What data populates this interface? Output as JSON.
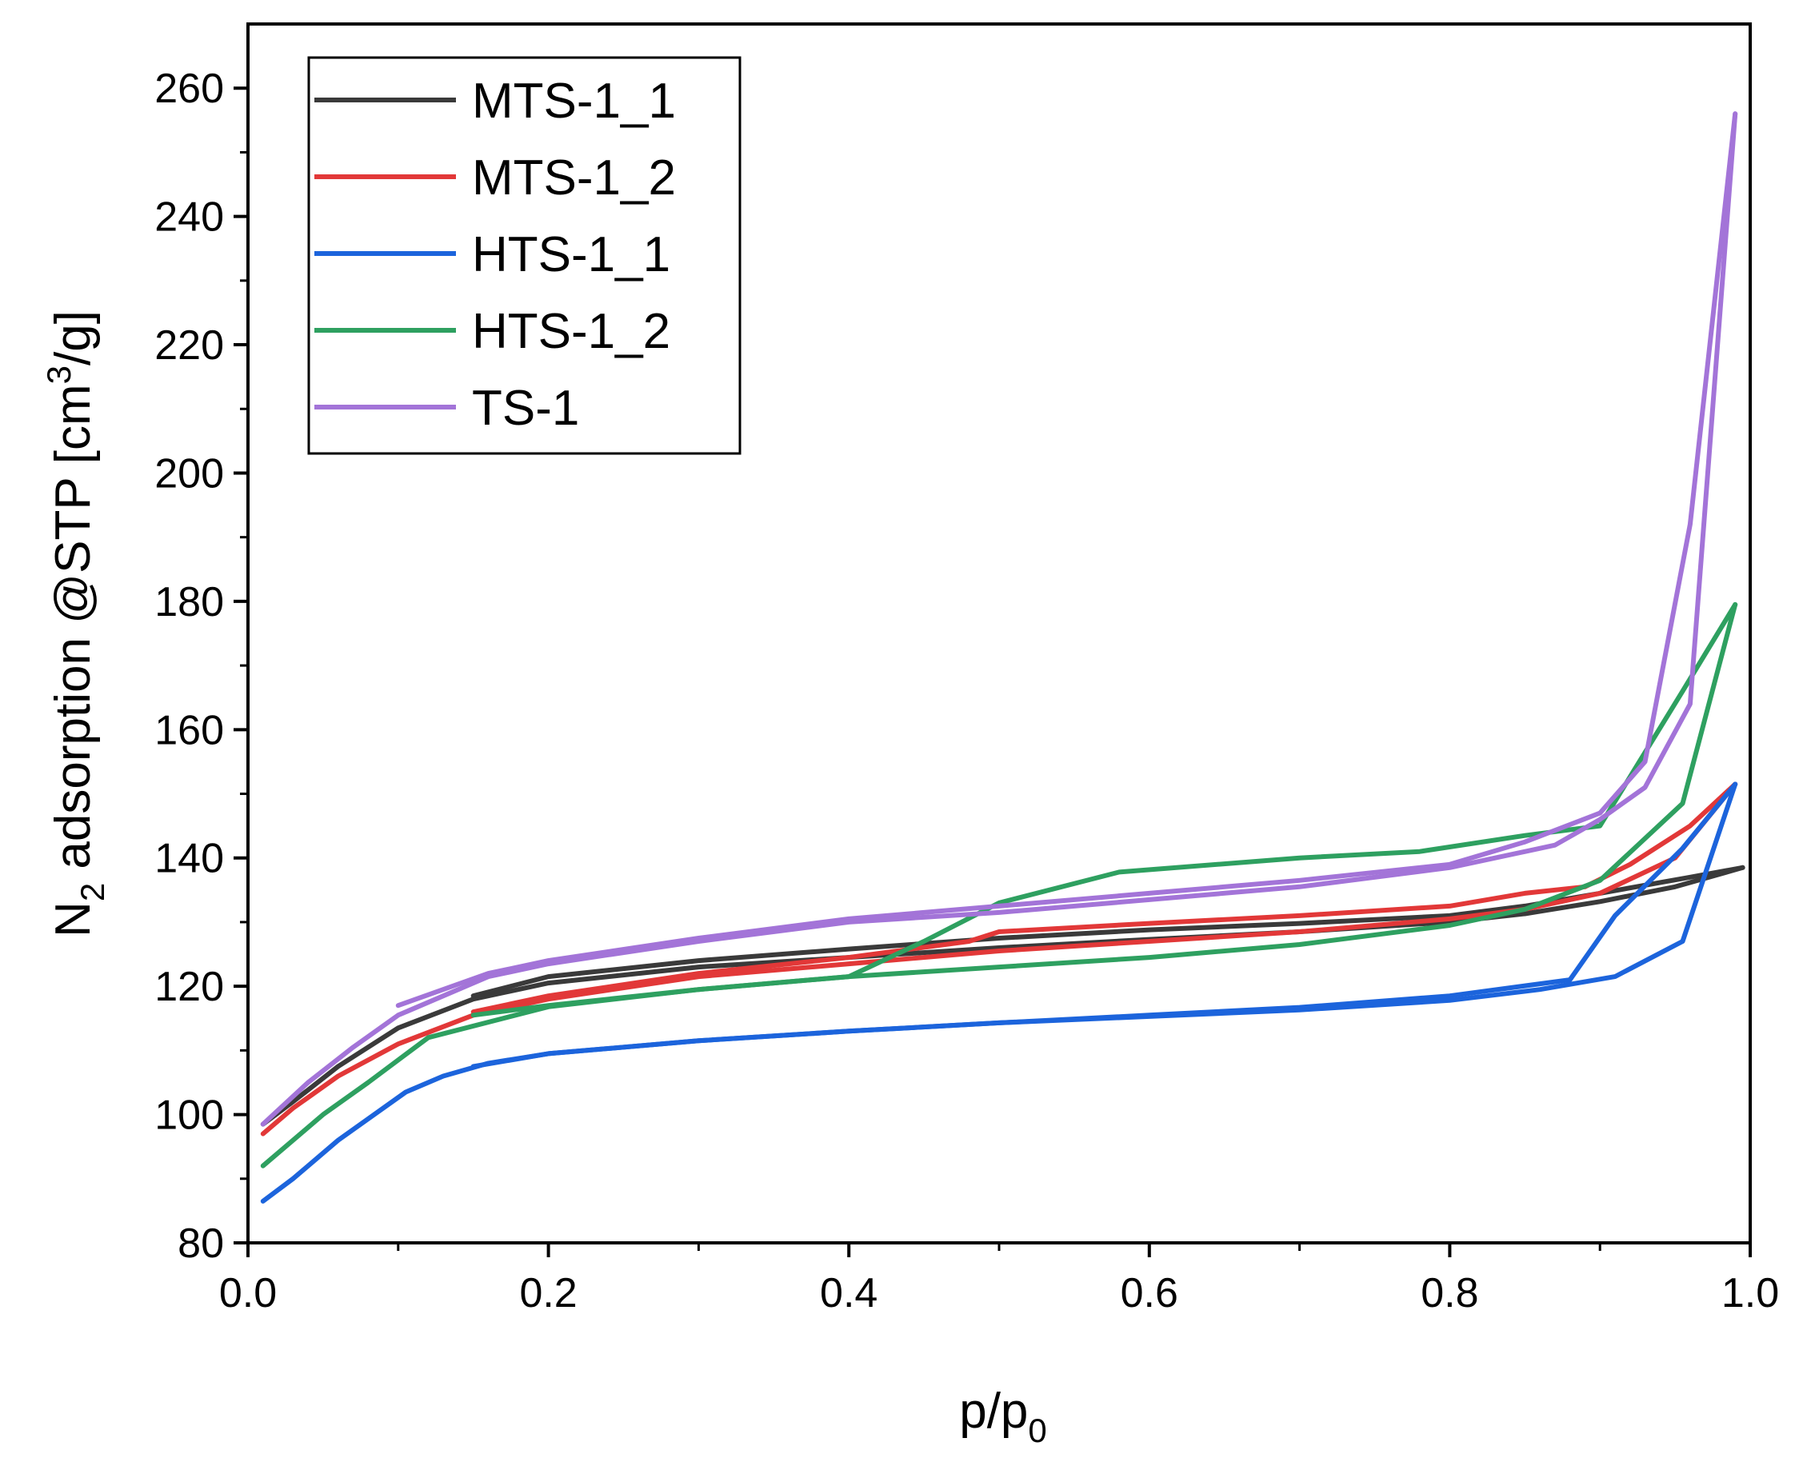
{
  "chart_data": {
    "type": "line",
    "title": "",
    "xlabel": {
      "base": "p/p",
      "sub": "0"
    },
    "ylabel": {
      "part1": "N",
      "sub": "2",
      "part2": " adsorption @STP [cm",
      "sup": "3",
      "part3": "/g]"
    },
    "xlim": [
      0.0,
      1.0
    ],
    "ylim": [
      80,
      270
    ],
    "xticks": [
      0.0,
      0.2,
      0.4,
      0.6,
      0.8,
      1.0
    ],
    "xtick_labels": [
      "0.0",
      "0.2",
      "0.4",
      "0.6",
      "0.8",
      "1.0"
    ],
    "yticks": [
      80,
      100,
      120,
      140,
      160,
      180,
      200,
      220,
      240,
      260
    ],
    "ytick_labels": [
      "80",
      "100",
      "120",
      "140",
      "160",
      "180",
      "200",
      "220",
      "240",
      "260"
    ],
    "legend_position": "top-left",
    "series": [
      {
        "name": "MTS-1_1",
        "color": "#3a3a3a",
        "adsorption": [
          [
            0.01,
            98.5
          ],
          [
            0.03,
            102
          ],
          [
            0.06,
            107.5
          ],
          [
            0.1,
            113.5
          ],
          [
            0.15,
            118
          ],
          [
            0.2,
            120.5
          ],
          [
            0.3,
            123
          ],
          [
            0.4,
            124.5
          ],
          [
            0.5,
            126
          ],
          [
            0.6,
            127.3
          ],
          [
            0.7,
            128.5
          ],
          [
            0.8,
            130
          ],
          [
            0.85,
            131.3
          ],
          [
            0.9,
            133.2
          ],
          [
            0.95,
            135.5
          ],
          [
            0.995,
            138.5
          ]
        ],
        "desorption": [
          [
            0.995,
            138.5
          ],
          [
            0.96,
            137
          ],
          [
            0.9,
            134.5
          ],
          [
            0.85,
            132.5
          ],
          [
            0.8,
            131
          ],
          [
            0.7,
            129.8
          ],
          [
            0.6,
            128.8
          ],
          [
            0.5,
            127.5
          ],
          [
            0.4,
            125.8
          ],
          [
            0.3,
            124
          ],
          [
            0.2,
            121.5
          ],
          [
            0.15,
            118.5
          ]
        ]
      },
      {
        "name": "MTS-1_2",
        "color": "#e23838",
        "adsorption": [
          [
            0.01,
            97
          ],
          [
            0.03,
            101
          ],
          [
            0.06,
            106
          ],
          [
            0.1,
            111
          ],
          [
            0.15,
            115.5
          ],
          [
            0.2,
            118
          ],
          [
            0.3,
            121.5
          ],
          [
            0.4,
            123.5
          ],
          [
            0.5,
            125.5
          ],
          [
            0.6,
            127
          ],
          [
            0.7,
            128.5
          ],
          [
            0.8,
            130.5
          ],
          [
            0.85,
            132
          ],
          [
            0.9,
            134.5
          ],
          [
            0.95,
            140
          ],
          [
            0.99,
            151.5
          ]
        ],
        "desorption": [
          [
            0.99,
            151.5
          ],
          [
            0.96,
            145
          ],
          [
            0.92,
            139
          ],
          [
            0.89,
            135.5
          ],
          [
            0.85,
            134.5
          ],
          [
            0.8,
            132.5
          ],
          [
            0.7,
            131
          ],
          [
            0.6,
            129.8
          ],
          [
            0.5,
            128.5
          ],
          [
            0.48,
            127
          ],
          [
            0.4,
            124.5
          ],
          [
            0.3,
            122
          ],
          [
            0.2,
            118.5
          ],
          [
            0.15,
            116
          ]
        ]
      },
      {
        "name": "HTS-1_1",
        "color": "#1c64dc",
        "adsorption": [
          [
            0.01,
            86.5
          ],
          [
            0.03,
            90
          ],
          [
            0.06,
            96
          ],
          [
            0.105,
            103.5
          ],
          [
            0.13,
            106
          ],
          [
            0.16,
            108
          ],
          [
            0.2,
            109.5
          ],
          [
            0.3,
            111.5
          ],
          [
            0.4,
            113
          ],
          [
            0.5,
            114.3
          ],
          [
            0.6,
            115.3
          ],
          [
            0.7,
            116.3
          ],
          [
            0.8,
            117.8
          ],
          [
            0.86,
            119.5
          ],
          [
            0.91,
            121.5
          ],
          [
            0.955,
            127
          ],
          [
            0.99,
            151.5
          ]
        ],
        "desorption": [
          [
            0.99,
            151.5
          ],
          [
            0.955,
            141.5
          ],
          [
            0.91,
            131
          ],
          [
            0.88,
            121
          ],
          [
            0.8,
            118.5
          ],
          [
            0.7,
            116.7
          ],
          [
            0.6,
            115.5
          ],
          [
            0.5,
            114.3
          ],
          [
            0.4,
            113
          ],
          [
            0.3,
            111.5
          ],
          [
            0.2,
            109.5
          ],
          [
            0.15,
            107.5
          ]
        ]
      },
      {
        "name": "HTS-1_2",
        "color": "#2ea060",
        "adsorption": [
          [
            0.01,
            92
          ],
          [
            0.05,
            100
          ],
          [
            0.08,
            105
          ],
          [
            0.12,
            112
          ],
          [
            0.2,
            116.8
          ],
          [
            0.3,
            119.5
          ],
          [
            0.4,
            121.5
          ],
          [
            0.5,
            123
          ],
          [
            0.6,
            124.5
          ],
          [
            0.7,
            126.5
          ],
          [
            0.8,
            129.5
          ],
          [
            0.85,
            132
          ],
          [
            0.9,
            136.5
          ],
          [
            0.955,
            148.5
          ],
          [
            0.99,
            179.5
          ]
        ],
        "desorption": [
          [
            0.99,
            179.5
          ],
          [
            0.955,
            166
          ],
          [
            0.9,
            145
          ],
          [
            0.85,
            143.5
          ],
          [
            0.78,
            141
          ],
          [
            0.7,
            140
          ],
          [
            0.58,
            137.8
          ],
          [
            0.5,
            133
          ],
          [
            0.45,
            127
          ],
          [
            0.4,
            121.5
          ],
          [
            0.3,
            119.5
          ],
          [
            0.2,
            117
          ],
          [
            0.15,
            115.5
          ]
        ]
      },
      {
        "name": "TS-1",
        "color": "#a374d8",
        "adsorption": [
          [
            0.01,
            98.5
          ],
          [
            0.04,
            105
          ],
          [
            0.07,
            110.5
          ],
          [
            0.1,
            115.5
          ],
          [
            0.16,
            121.5
          ],
          [
            0.2,
            123.5
          ],
          [
            0.3,
            127
          ],
          [
            0.4,
            130
          ],
          [
            0.5,
            131.5
          ],
          [
            0.6,
            133.5
          ],
          [
            0.7,
            135.5
          ],
          [
            0.8,
            138.5
          ],
          [
            0.87,
            142
          ],
          [
            0.9,
            146
          ],
          [
            0.93,
            151
          ],
          [
            0.96,
            164
          ],
          [
            0.99,
            256
          ]
        ],
        "desorption": [
          [
            0.99,
            256
          ],
          [
            0.96,
            192
          ],
          [
            0.93,
            155
          ],
          [
            0.9,
            147
          ],
          [
            0.85,
            142.5
          ],
          [
            0.8,
            139
          ],
          [
            0.7,
            136.5
          ],
          [
            0.6,
            134.5
          ],
          [
            0.5,
            132.5
          ],
          [
            0.4,
            130.5
          ],
          [
            0.3,
            127.5
          ],
          [
            0.2,
            124
          ],
          [
            0.16,
            122
          ],
          [
            0.1,
            117
          ]
        ]
      }
    ]
  }
}
